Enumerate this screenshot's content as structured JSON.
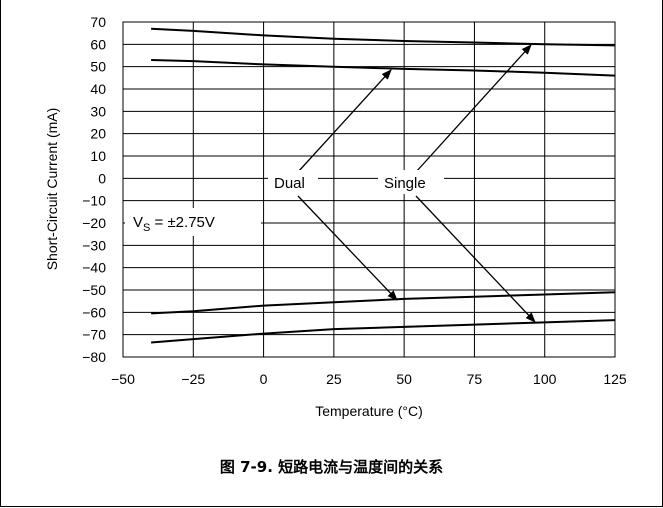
{
  "chart_data": {
    "type": "line",
    "xlabel": "Temperature (°C)",
    "ylabel": "Short-Circuit Current (mA)",
    "xlim": [
      -50,
      125
    ],
    "ylim": [
      -80,
      70
    ],
    "x_ticks": [
      -50,
      -25,
      0,
      25,
      50,
      75,
      100,
      125
    ],
    "y_ticks": [
      70,
      60,
      50,
      40,
      30,
      20,
      10,
      0,
      -10,
      -20,
      -30,
      -40,
      -50,
      -60,
      -70,
      -80
    ],
    "x_tick_labels": [
      "−50",
      "−25",
      "0",
      "25",
      "50",
      "75",
      "100",
      "125"
    ],
    "y_tick_labels": [
      "70",
      "60",
      "50",
      "40",
      "30",
      "20",
      "10",
      "0",
      "−10",
      "−20",
      "−30",
      "−40",
      "−50",
      "−60",
      "−70",
      "−80"
    ],
    "grid": true,
    "series": [
      {
        "x": [
          -40,
          -25,
          0,
          25,
          50,
          75,
          100,
          125
        ],
        "values": [
          67,
          66,
          64,
          62.5,
          61.5,
          60.8,
          60,
          59.5
        ]
      },
      {
        "x": [
          -40,
          -25,
          0,
          25,
          50,
          75,
          100,
          125
        ],
        "values": [
          53,
          52.5,
          51,
          50,
          49,
          48.3,
          47.3,
          46
        ]
      },
      {
        "x": [
          -40,
          -25,
          0,
          25,
          50,
          75,
          100,
          125
        ],
        "values": [
          -60.5,
          -59.5,
          -57,
          -55.5,
          -54,
          -53,
          -52,
          -51
        ]
      },
      {
        "x": [
          -40,
          -25,
          0,
          25,
          50,
          75,
          100,
          125
        ],
        "values": [
          -73.5,
          -72,
          -69.5,
          -67.5,
          -66.5,
          -65.5,
          -64.5,
          -63.5
        ]
      }
    ],
    "annotations": {
      "dual": "Dual",
      "single": "Single",
      "vs_main": "V",
      "vs_sub": "S",
      "vs_rest": " = ±2.75V"
    }
  },
  "caption": "图 7-9. 短路电流与温度间的关系"
}
